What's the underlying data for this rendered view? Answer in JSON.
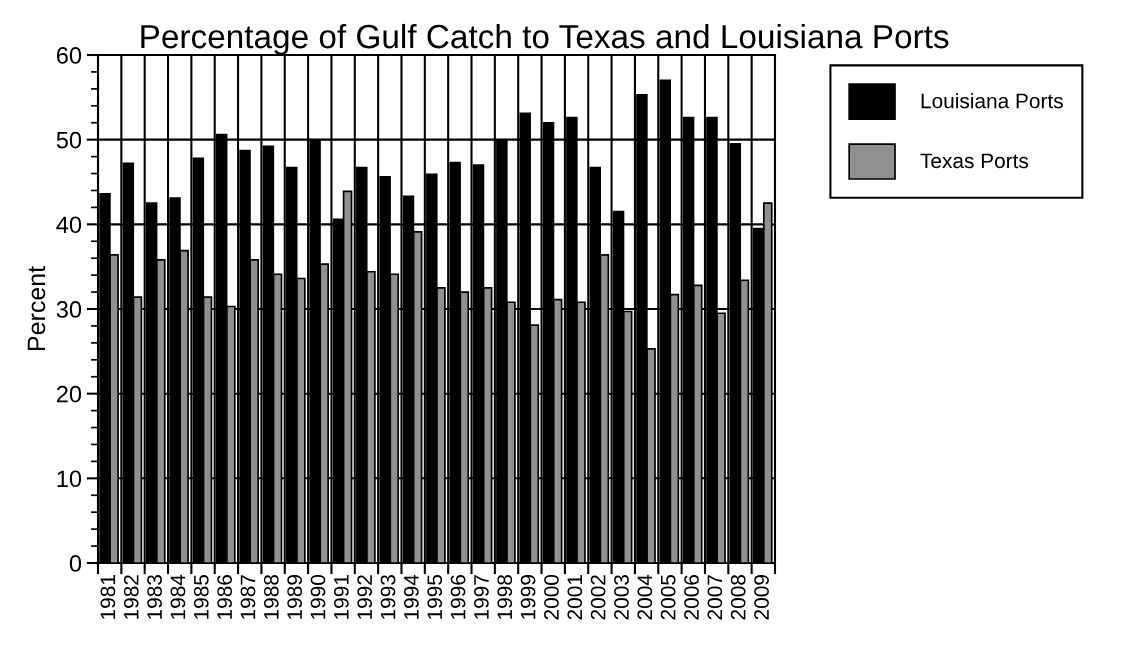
{
  "chart_data": {
    "type": "bar",
    "title": "Percentage of Gulf Catch to Texas and Louisiana Ports",
    "ylabel": "Percent",
    "categories": [
      "1981",
      "1982",
      "1983",
      "1984",
      "1985",
      "1986",
      "1987",
      "1988",
      "1989",
      "1990",
      "1991",
      "1992",
      "1993",
      "1994",
      "1995",
      "1996",
      "1997",
      "1998",
      "1999",
      "2000",
      "2001",
      "2002",
      "2003",
      "2004",
      "2005",
      "2006",
      "2007",
      "2008",
      "2009"
    ],
    "series": [
      {
        "name": "Louisiana Ports",
        "color": "#000000",
        "values": [
          43.6,
          47.2,
          42.5,
          43.1,
          47.8,
          50.6,
          48.7,
          49.2,
          46.7,
          49.9,
          40.6,
          46.7,
          45.6,
          43.3,
          45.9,
          47.3,
          47.0,
          49.9,
          53.1,
          52.0,
          52.6,
          46.7,
          41.5,
          55.3,
          57.0,
          52.6,
          52.6,
          49.5,
          39.5
        ]
      },
      {
        "name": "Texas Ports",
        "color": "#909090",
        "values": [
          36.4,
          31.4,
          35.8,
          36.9,
          31.4,
          30.3,
          35.8,
          34.1,
          33.6,
          35.3,
          43.9,
          34.4,
          34.1,
          39.1,
          32.5,
          32.0,
          32.5,
          30.8,
          28.1,
          31.1,
          30.8,
          36.4,
          29.7,
          25.3,
          31.7,
          32.8,
          29.5,
          33.4,
          42.5
        ]
      }
    ],
    "ylim": [
      0,
      60
    ],
    "yticks": [
      0,
      10,
      20,
      30,
      40,
      50,
      60
    ],
    "grid": true,
    "legend": "top right"
  }
}
